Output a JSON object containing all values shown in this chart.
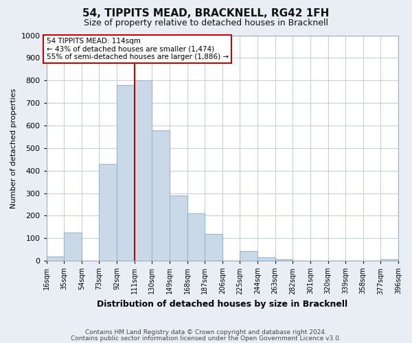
{
  "title": "54, TIPPITS MEAD, BRACKNELL, RG42 1FH",
  "subtitle": "Size of property relative to detached houses in Bracknell",
  "xlabel": "Distribution of detached houses by size in Bracknell",
  "ylabel": "Number of detached properties",
  "bar_color": "#c9d9e8",
  "bar_edge_color": "#9ab5cc",
  "vline_x": 111,
  "vline_color": "#cc0000",
  "bin_edges": [
    16,
    35,
    54,
    73,
    92,
    111,
    130,
    149,
    168,
    187,
    206,
    225,
    244,
    263,
    282,
    301,
    320,
    339,
    358,
    377,
    396
  ],
  "bin_labels": [
    "16sqm",
    "35sqm",
    "54sqm",
    "73sqm",
    "92sqm",
    "111sqm",
    "130sqm",
    "149sqm",
    "168sqm",
    "187sqm",
    "206sqm",
    "225sqm",
    "244sqm",
    "263sqm",
    "282sqm",
    "301sqm",
    "320sqm",
    "339sqm",
    "358sqm",
    "377sqm",
    "396sqm"
  ],
  "bar_heights": [
    18,
    125,
    0,
    428,
    780,
    800,
    578,
    290,
    210,
    120,
    0,
    42,
    15,
    8,
    0,
    0,
    0,
    0,
    0,
    5
  ],
  "ylim": [
    0,
    1000
  ],
  "yticks": [
    0,
    100,
    200,
    300,
    400,
    500,
    600,
    700,
    800,
    900,
    1000
  ],
  "annotation_title": "54 TIPPITS MEAD: 114sqm",
  "annotation_line1": "← 43% of detached houses are smaller (1,474)",
  "annotation_line2": "55% of semi-detached houses are larger (1,886) →",
  "annotation_box_color": "#ffffff",
  "annotation_box_edge": "#cc0000",
  "footnote1": "Contains HM Land Registry data © Crown copyright and database right 2024.",
  "footnote2": "Contains public sector information licensed under the Open Government Licence v3.0.",
  "background_color": "#e8eef4",
  "plot_bg_color": "#ffffff",
  "grid_color": "#c5d0dc"
}
